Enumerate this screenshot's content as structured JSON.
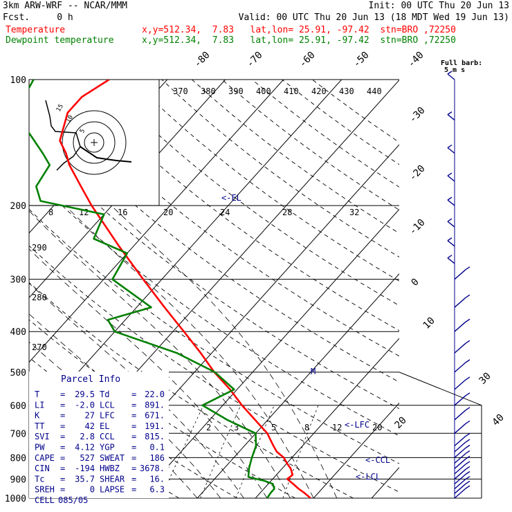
{
  "header": {
    "model": "3km ARW-WRF -- NCAR/MMM",
    "init": "Init: 00 UTC Thu 20 Jun 13",
    "fcst": "Fcst.     0 h",
    "valid": "Valid: 00 UTC Thu 20 Jun 13 (18 MDT Wed 19 Jun 13)",
    "temp_name": "Temperature",
    "temp_loc": "x,y=512.34,  7.83   lat,lon= 25.91, -97.42  stn=BRO ,72250",
    "dew_name": "Dewpoint temperature",
    "dew_loc": "x,y=512.34,  7.83   lat,lon= 25.91, -97.42  stn=BRO ,72250"
  },
  "barb_note": {
    "l1": "Full barb:",
    "l2": "5 m s"
  },
  "hodograph": {
    "units": "kts",
    "rings": [
      "5",
      "10",
      "15"
    ]
  },
  "parcel": {
    "title": "Parcel Info",
    "rows": [
      [
        "T",
        "29.5",
        "Td",
        "22.0"
      ],
      [
        "LI",
        "-2.0",
        "LCL",
        "891."
      ],
      [
        "K",
        "27",
        "LFC",
        "671."
      ],
      [
        "TT",
        "42",
        "EL",
        "191."
      ],
      [
        "SVI",
        "2.8",
        "CCL",
        "815."
      ],
      [
        "PW",
        "4.12",
        "YGP",
        "0.1"
      ],
      [
        "CAPE",
        "527",
        "SWEAT",
        "186"
      ],
      [
        "CIN",
        "-194",
        "HWBZ",
        "3678."
      ],
      [
        "Tc",
        "35.7",
        "SHEAR",
        "16."
      ],
      [
        "SREH",
        "0",
        "LAPSE",
        "6.3"
      ],
      [
        "CELL",
        "085/05",
        "",
        ""
      ]
    ]
  },
  "level_markers": {
    "el": "<-EL",
    "lfc": "<-LFC",
    "ccl": "<-CCL",
    "lcl": "<-LCL",
    "m": "M"
  },
  "chart_data": {
    "type": "line",
    "chart_kind": "skew-T log-P sounding",
    "y_axis": {
      "scale": "log",
      "units": "hPa",
      "ticks": [
        100,
        200,
        300,
        400,
        500,
        600,
        700,
        800,
        900,
        1000
      ]
    },
    "isotherm_labels": [
      -80,
      -70,
      -60,
      -50,
      -40,
      -30,
      -20,
      -10,
      0,
      10,
      20,
      30,
      40
    ],
    "theta_e_labels": [
      370,
      380,
      390,
      400,
      410,
      420,
      430,
      440
    ],
    "dry_adiabat_labels": [
      270,
      280,
      290
    ],
    "mixing_ratio_labels_200": [
      8,
      12,
      16,
      20,
      24,
      28,
      32
    ],
    "mixing_ratio_labels_700": [
      2,
      3,
      5,
      8,
      12,
      20
    ],
    "series": [
      {
        "name": "Temperature",
        "color": "#ff0000",
        "points": [
          [
            1000,
            29.5
          ],
          [
            970,
            27.5
          ],
          [
            950,
            26
          ],
          [
            925,
            24.3
          ],
          [
            900,
            22.5
          ],
          [
            880,
            22.8
          ],
          [
            850,
            21.5
          ],
          [
            825,
            20
          ],
          [
            800,
            18.6
          ],
          [
            775,
            16.5
          ],
          [
            750,
            15
          ],
          [
            700,
            12
          ],
          [
            650,
            7.8
          ],
          [
            600,
            3.3
          ],
          [
            550,
            -1.2
          ],
          [
            500,
            -6.6
          ],
          [
            450,
            -11.9
          ],
          [
            400,
            -18.1
          ],
          [
            350,
            -25.2
          ],
          [
            300,
            -33.2
          ],
          [
            250,
            -42.5
          ],
          [
            200,
            -53.5
          ],
          [
            180,
            -58.3
          ],
          [
            160,
            -63.6
          ],
          [
            150,
            -66
          ],
          [
            140,
            -69
          ],
          [
            120,
            -72
          ],
          [
            110,
            -72
          ],
          [
            100,
            -70
          ]
        ]
      },
      {
        "name": "Dewpoint temperature",
        "color": "#008000",
        "points": [
          [
            1000,
            22
          ],
          [
            970,
            21.8
          ],
          [
            950,
            21.8
          ],
          [
            925,
            20.8
          ],
          [
            910,
            19
          ],
          [
            890,
            15.5
          ],
          [
            850,
            14.3
          ],
          [
            800,
            13.1
          ],
          [
            750,
            12
          ],
          [
            700,
            10
          ],
          [
            650,
            3
          ],
          [
            600,
            -3.5
          ],
          [
            550,
            -0.5
          ],
          [
            500,
            -6.5
          ],
          [
            450,
            -16
          ],
          [
            400,
            -30
          ],
          [
            375,
            -33
          ],
          [
            350,
            -27.5
          ],
          [
            300,
            -38.5
          ],
          [
            260,
            -40
          ],
          [
            240,
            -48
          ],
          [
            210,
            -50
          ],
          [
            195,
            -63
          ],
          [
            180,
            -66
          ],
          [
            160,
            -67
          ],
          [
            150,
            -70
          ],
          [
            120,
            -81
          ],
          [
            100,
            -83
          ]
        ]
      }
    ],
    "wind_barbs_hPa": [
      1000,
      975,
      950,
      925,
      900,
      875,
      850,
      825,
      800,
      775,
      750,
      700,
      650,
      600,
      550,
      500,
      450,
      400,
      350,
      300,
      275,
      250,
      225,
      200,
      175,
      150,
      125,
      100
    ]
  }
}
